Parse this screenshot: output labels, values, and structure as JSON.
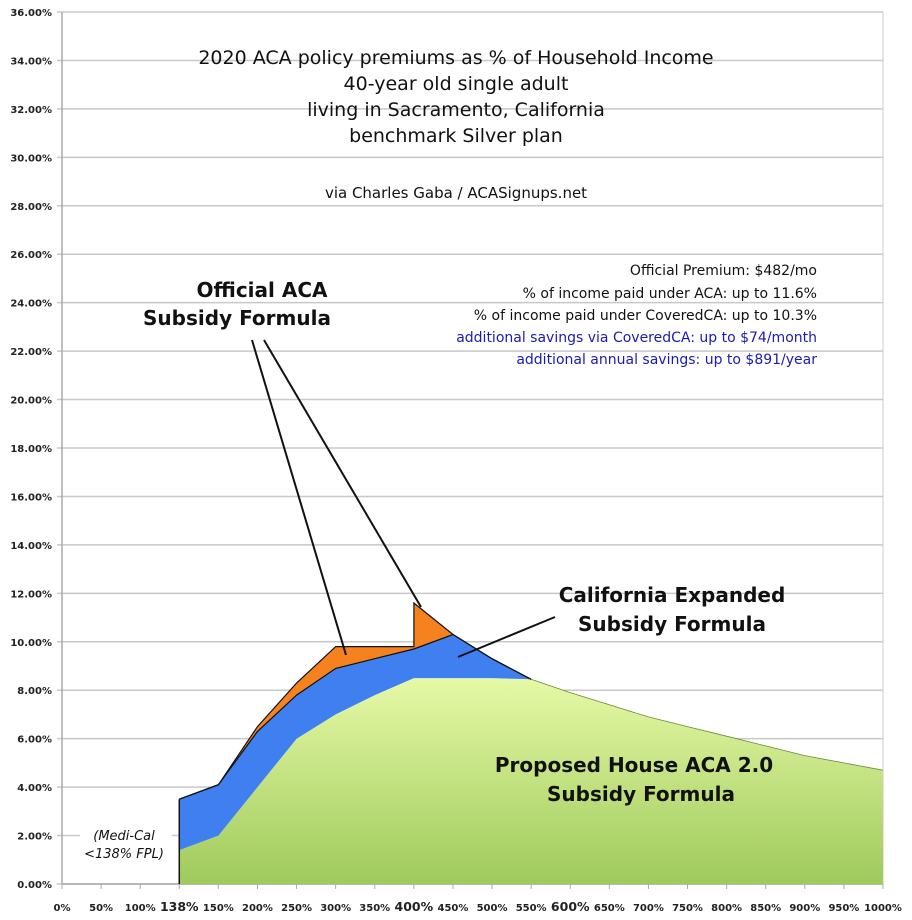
{
  "chart_data": {
    "type": "area",
    "title": [
      "2020 ACA policy premiums as % of Household Income",
      "40-year old single adult",
      "living in Sacramento, California",
      "benchmark Silver plan"
    ],
    "subtitle": "via Charles Gaba / ACASignups.net",
    "categories": [
      "0%",
      "50%",
      "100%",
      "138%",
      "150%",
      "200%",
      "250%",
      "300%",
      "350%",
      "400%",
      "450%",
      "500%",
      "550%",
      "600%",
      "650%",
      "700%",
      "750%",
      "800%",
      "850%",
      "900%",
      "950%",
      "1000%"
    ],
    "bold_categories": [
      "138%",
      "400%",
      "600%"
    ],
    "y_ticks": [
      "0.00%",
      "2.00%",
      "4.00%",
      "6.00%",
      "8.00%",
      "10.00%",
      "12.00%",
      "14.00%",
      "16.00%",
      "18.00%",
      "20.00%",
      "22.00%",
      "24.00%",
      "26.00%",
      "28.00%",
      "30.00%",
      "32.00%",
      "34.00%",
      "36.00%"
    ],
    "ylim": [
      0,
      36
    ],
    "grid": true,
    "series": [
      {
        "key": "aca",
        "color": "#f5821f",
        "points": [
          [
            "138%",
            3.5
          ],
          [
            "150%",
            4.1
          ],
          [
            "200%",
            6.5
          ],
          [
            "250%",
            8.3
          ],
          [
            "300%",
            9.8
          ],
          [
            "350%",
            9.8
          ],
          [
            "400%",
            9.8
          ],
          [
            "400%",
            11.6
          ],
          [
            "450%",
            10.3
          ],
          [
            "500%",
            9.3
          ],
          [
            "550%",
            8.45
          ]
        ]
      },
      {
        "key": "coveredca",
        "color": "#3f7ff0",
        "points": [
          [
            "138%",
            3.5
          ],
          [
            "150%",
            4.1
          ],
          [
            "200%",
            6.3
          ],
          [
            "250%",
            7.8
          ],
          [
            "300%",
            8.9
          ],
          [
            "350%",
            9.3
          ],
          [
            "400%",
            9.7
          ],
          [
            "450%",
            10.3
          ],
          [
            "500%",
            9.3
          ],
          [
            "550%",
            8.45
          ]
        ]
      },
      {
        "key": "house",
        "color": "#b7dc78",
        "points": [
          [
            "138%",
            1.4
          ],
          [
            "150%",
            2.0
          ],
          [
            "200%",
            4.0
          ],
          [
            "250%",
            6.0
          ],
          [
            "300%",
            7.0
          ],
          [
            "350%",
            7.8
          ],
          [
            "400%",
            8.5
          ],
          [
            "450%",
            8.5
          ],
          [
            "500%",
            8.5
          ],
          [
            "550%",
            8.45
          ],
          [
            "600%",
            7.9
          ],
          [
            "650%",
            7.4
          ],
          [
            "700%",
            6.9
          ],
          [
            "750%",
            6.5
          ],
          [
            "800%",
            6.1
          ],
          [
            "850%",
            5.7
          ],
          [
            "900%",
            5.3
          ],
          [
            "950%",
            5.0
          ],
          [
            "1000%",
            4.7
          ]
        ]
      }
    ],
    "info": [
      {
        "text": "Official Premium: $482/mo",
        "color": "#111111"
      },
      {
        "text": "% of income paid under ACA: up to 11.6%",
        "color": "#111111"
      },
      {
        "text": "% of income paid under CoveredCA: up to 10.3%",
        "color": "#111111"
      },
      {
        "text": "additional savings via CoveredCA: up to $74/month",
        "color": "#1a1ab8"
      },
      {
        "text": "additional annual savings: up to $891/year",
        "color": "#1a1ab8"
      }
    ],
    "annotations": {
      "aca": [
        "Official ACA",
        "Subsidy Formula"
      ],
      "ca": [
        "California Expanded",
        "Subsidy Formula"
      ],
      "house": [
        "Proposed House ACA 2.0",
        "Subsidy Formula"
      ],
      "medi": [
        "(Medi-Cal",
        "<138% FPL)"
      ]
    }
  }
}
